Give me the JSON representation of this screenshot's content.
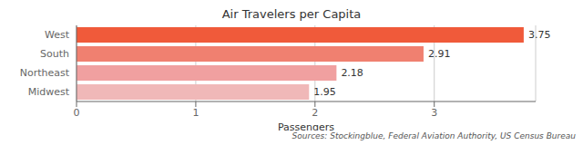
{
  "chart_data": {
    "type": "bar",
    "orientation": "horizontal",
    "title": "Air Travelers per Capita",
    "categories": [
      "Midwest",
      "Northeast",
      "South",
      "West"
    ],
    "values": [
      1.95,
      2.18,
      2.91,
      3.75
    ],
    "value_labels": [
      "1.95",
      "2.18",
      "2.91",
      "3.75"
    ],
    "data_labels": true,
    "colors": [
      "#f0b8b8",
      "#f0a0a0",
      "#f08070",
      "#f05a3a"
    ],
    "xlabel": "Passengers",
    "xlim": [
      0,
      3.85
    ],
    "xticks": [
      0,
      1,
      2,
      3
    ],
    "grid": true,
    "annotations": [
      "Sources: Stockingblue, Federal Aviation Authority, US Census Bureau"
    ]
  }
}
